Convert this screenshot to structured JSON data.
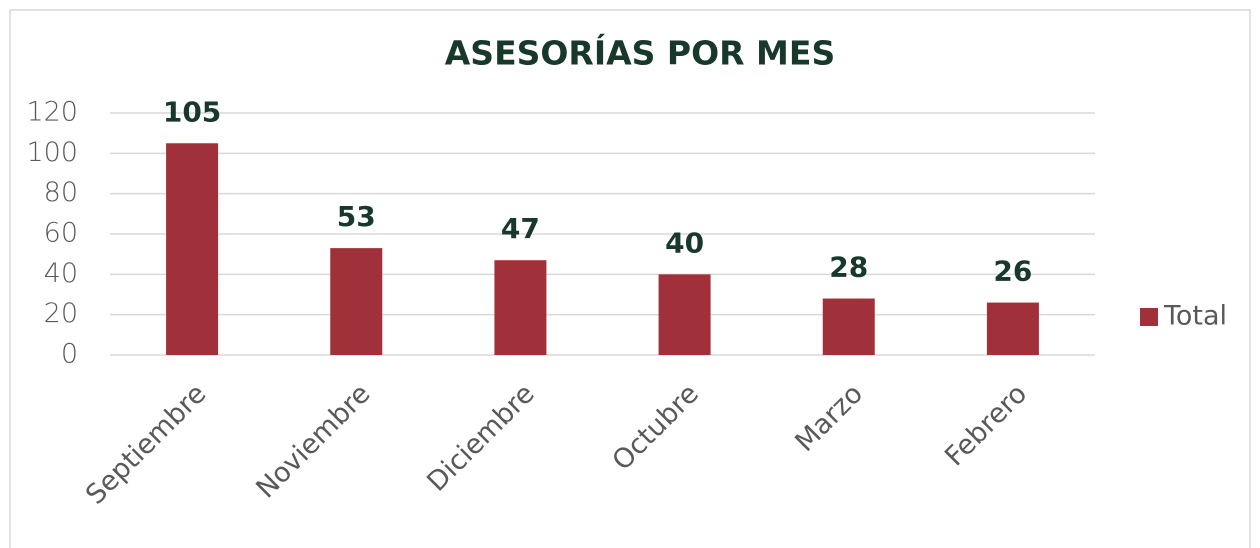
{
  "chart_data": {
    "type": "bar",
    "title": "ASESORÍAS POR MES",
    "categories": [
      "Septiembre",
      "Noviembre",
      "Diciembre",
      "Octubre",
      "Marzo",
      "Febrero"
    ],
    "series": [
      {
        "name": "Total",
        "color": "#a0303a",
        "values": [
          105,
          53,
          47,
          40,
          28,
          26
        ]
      }
    ],
    "ylim": [
      0,
      120
    ],
    "yticks": [
      0,
      20,
      40,
      60,
      80,
      100,
      120
    ],
    "grid": true,
    "legend": "right",
    "data_labels": true
  }
}
